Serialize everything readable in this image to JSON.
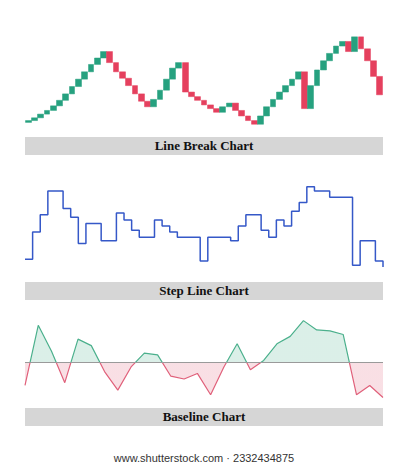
{
  "chart_data": [
    {
      "type": "line_break",
      "title": "Line Break Chart",
      "open": [
        5,
        7,
        10,
        14,
        18,
        23,
        29,
        36,
        44,
        52,
        60,
        68,
        75,
        82,
        70,
        60,
        53,
        45,
        36,
        28,
        22,
        30,
        40,
        52,
        64,
        70,
        38,
        33,
        29,
        24,
        20,
        16,
        22,
        26,
        18,
        12,
        7,
        3,
        12,
        22,
        30,
        38,
        45,
        52,
        60,
        20,
        45,
        62,
        72,
        80,
        88,
        93,
        82,
        98,
        85,
        72,
        55
      ],
      "close": [
        7,
        10,
        14,
        18,
        23,
        29,
        36,
        44,
        52,
        60,
        68,
        75,
        82,
        70,
        60,
        53,
        45,
        36,
        28,
        22,
        30,
        40,
        52,
        64,
        70,
        38,
        33,
        29,
        24,
        20,
        16,
        22,
        26,
        18,
        12,
        7,
        3,
        12,
        22,
        30,
        38,
        45,
        52,
        60,
        20,
        45,
        62,
        72,
        80,
        88,
        93,
        82,
        98,
        85,
        72,
        55,
        35
      ],
      "colors": [
        "#26a17f",
        "#26a17f",
        "#26a17f",
        "#26a17f",
        "#26a17f",
        "#26a17f",
        "#26a17f",
        "#26a17f",
        "#26a17f",
        "#26a17f",
        "#26a17f",
        "#26a17f",
        "#26a17f",
        "#e5405e",
        "#e5405e",
        "#e5405e",
        "#e5405e",
        "#e5405e",
        "#e5405e",
        "#e5405e",
        "#26a17f",
        "#26a17f",
        "#26a17f",
        "#26a17f",
        "#26a17f",
        "#e5405e",
        "#e5405e",
        "#e5405e",
        "#e5405e",
        "#e5405e",
        "#e5405e",
        "#26a17f",
        "#26a17f",
        "#e5405e",
        "#e5405e",
        "#e5405e",
        "#e5405e",
        "#26a17f",
        "#26a17f",
        "#26a17f",
        "#26a17f",
        "#26a17f",
        "#26a17f",
        "#26a17f",
        "#e5405e",
        "#26a17f",
        "#26a17f",
        "#26a17f",
        "#26a17f",
        "#26a17f",
        "#26a17f",
        "#e5405e",
        "#26a17f",
        "#e5405e",
        "#e5405e",
        "#e5405e",
        "#e5405e"
      ],
      "ylim": [
        0,
        100
      ],
      "tick_labels": false,
      "grid": false
    },
    {
      "type": "step_line",
      "title": "Step Line Chart",
      "values": [
        17,
        48,
        68,
        95,
        95,
        75,
        65,
        35,
        58,
        58,
        38,
        38,
        70,
        62,
        50,
        42,
        42,
        62,
        55,
        48,
        42,
        42,
        42,
        15,
        42,
        42,
        42,
        38,
        55,
        68,
        68,
        50,
        42,
        62,
        55,
        72,
        82,
        100,
        95,
        95,
        88,
        88,
        88,
        10,
        38,
        38,
        15,
        8
      ],
      "color": "#3558c8",
      "ylim": [
        0,
        110
      ],
      "tick_labels": false,
      "grid": false
    },
    {
      "type": "baseline",
      "title": "Baseline Chart",
      "values": [
        -25,
        40,
        12,
        -22,
        25,
        18,
        -10,
        -30,
        -5,
        10,
        8,
        -15,
        -18,
        -12,
        -35,
        -5,
        20,
        -8,
        2,
        20,
        28,
        45,
        35,
        34,
        30,
        -35,
        -25,
        -38
      ],
      "baseline": 0,
      "colors": [
        "#4bb08c",
        "#e0607a"
      ],
      "ylim": [
        -45,
        50
      ],
      "tick_labels": false,
      "grid": false
    }
  ],
  "watermark": "www.shutterstock.com · 2332434875"
}
